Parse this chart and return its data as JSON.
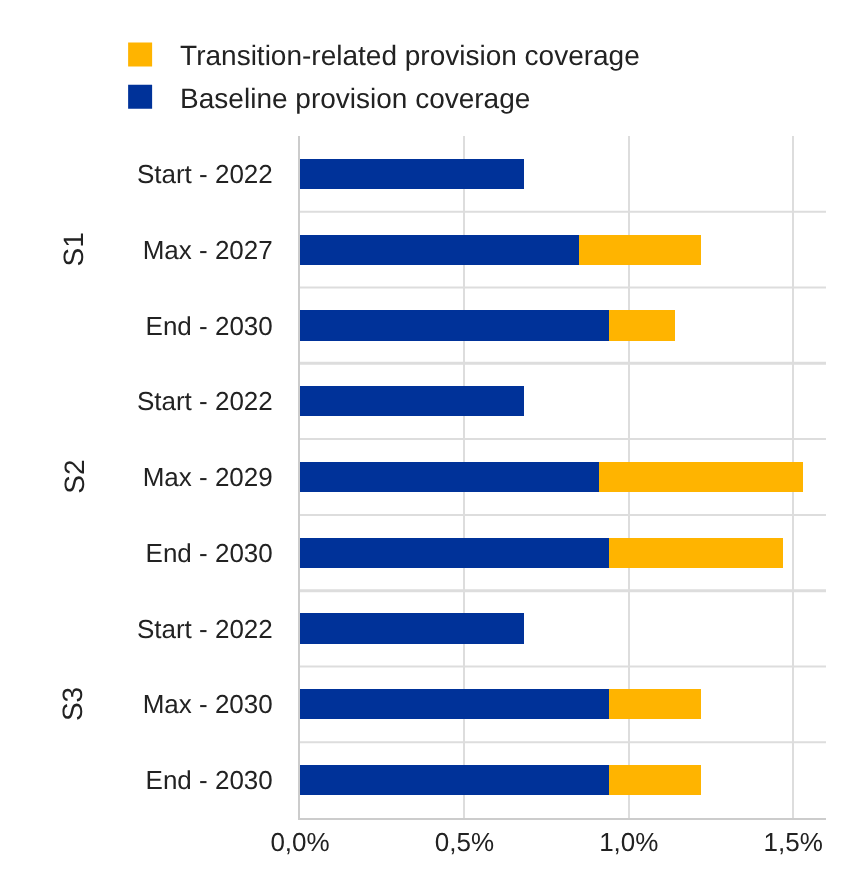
{
  "chart_data": {
    "type": "bar",
    "orientation": "horizontal",
    "stacked": true,
    "categories": [
      "Start - 2022",
      "Max - 2027",
      "End - 2030",
      "Start - 2022",
      "Max - 2029",
      "End - 2030",
      "Start - 2022",
      "Max - 2030",
      "End - 2030"
    ],
    "series": [
      {
        "name": "Baseline provision coverage",
        "color": "#003299",
        "values": [
          0.68,
          0.85,
          0.94,
          0.68,
          0.91,
          0.94,
          0.68,
          0.94,
          0.94
        ]
      },
      {
        "name": "Transition-related provision coverage",
        "color": "#ffb400",
        "values": [
          null,
          0.37,
          0.2,
          null,
          0.62,
          0.53,
          null,
          0.28,
          0.28
        ]
      }
    ],
    "annotations": [
      "S1",
      "S2",
      "S3"
    ],
    "xlim": [
      0,
      1.6
    ],
    "xticks": [
      {
        "value": 0,
        "label": "0,0%"
      },
      {
        "value": 0.5,
        "label": "0,5%"
      },
      {
        "value": 1.0,
        "label": "1,0%"
      },
      {
        "value": 1.5,
        "label": "1,5%"
      }
    ],
    "grid": true,
    "legend": "top left"
  }
}
